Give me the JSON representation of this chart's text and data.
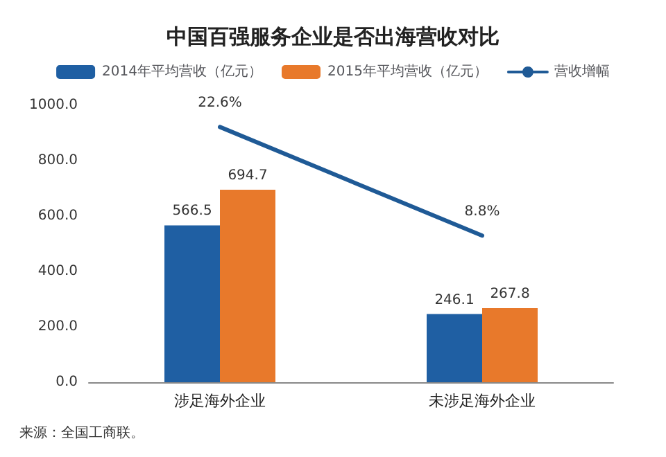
{
  "chart_data": {
    "type": "bar",
    "title": "中国百强服务企业是否出海营收对比",
    "categories": [
      "涉足海外企业",
      "未涉足海外企业"
    ],
    "series": [
      {
        "name": "2014年平均营收（亿元）",
        "color": "#1f5fa3",
        "values": [
          566.5,
          246.1
        ]
      },
      {
        "name": "2015年平均营收（亿元）",
        "color": "#e8792b",
        "values": [
          694.7,
          267.8
        ]
      },
      {
        "name": "营收增幅",
        "type": "line",
        "axis": "y2",
        "color": "#1f5a96",
        "values": [
          22.6,
          8.8
        ],
        "value_labels": [
          "22.6%",
          "8.8%"
        ]
      }
    ],
    "ylim": [
      0,
      1000
    ],
    "yticks": [
      {
        "value": 0,
        "label": "0.0"
      },
      {
        "value": 200,
        "label": "200.0"
      },
      {
        "value": 400,
        "label": "400.0"
      },
      {
        "value": 600,
        "label": "600.0"
      },
      {
        "value": 800,
        "label": "800.0"
      },
      {
        "value": 1000,
        "label": "1000.0"
      }
    ],
    "data_labels": true,
    "legend": "top",
    "grid": false,
    "marker": "none",
    "annotations": [
      "来源：全国工商联。"
    ]
  }
}
